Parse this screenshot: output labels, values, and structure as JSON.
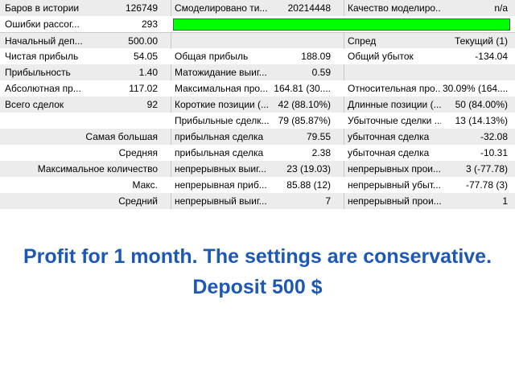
{
  "rows": [
    {
      "l1": "Баров в истории",
      "v1": "126749",
      "l2": "Смоделировано ти...",
      "v2": "20214448",
      "l3": "Качество моделиро...",
      "v3": "n/a"
    },
    {
      "l1": "Ошибки рассог...",
      "v1": "293",
      "quality_fraction": 1.0,
      "quality_color": "#00ff00"
    },
    {
      "l1": "Начальный деп...",
      "v1": "500.00",
      "l2": "",
      "v2": "",
      "l3": "Спред",
      "v3": "Текущий (1)"
    },
    {
      "l1": "Чистая прибыль",
      "v1": "54.05",
      "l2": "Общая прибыль",
      "v2": "188.09",
      "l3": "Общий убыток",
      "v3": "-134.04"
    },
    {
      "l1": "Прибыльность",
      "v1": "1.40",
      "l2": "Матожидание выиг...",
      "v2": "0.59",
      "l3": "",
      "v3": ""
    },
    {
      "l1": "Абсолютная пр...",
      "v1": "117.02",
      "l2": "Максимальная про...",
      "v2": "164.81 (30....",
      "l3": "Относительная про...",
      "v3": "30.09% (164...."
    },
    {
      "l1": "Всего сделок",
      "v1": "92",
      "l2": "Короткие позиции (...",
      "v2": "42 (88.10%)",
      "l3": "Длинные позиции (...",
      "v3": "50 (84.00%)"
    },
    {
      "l1": "",
      "v1": "",
      "l2": "Прибыльные сделк...",
      "v2": "79 (85.87%)",
      "l3": "Убыточные сделки ...",
      "v3": "13 (14.13%)"
    },
    {
      "wide": "Самая большая",
      "l2": "прибыльная сделка",
      "v2": "79.55",
      "l3": "убыточная сделка",
      "v3": "-32.08"
    },
    {
      "wide": "Средняя",
      "l2": "прибыльная сделка",
      "v2": "2.38",
      "l3": "убыточная сделка",
      "v3": "-10.31"
    },
    {
      "wide": "Максимальное количество",
      "l2": "непрерывных выиг...",
      "v2": "23 (19.03)",
      "l3": "непрерывных прои...",
      "v3": "3 (-77.78)"
    },
    {
      "wide": "Макс.",
      "l2": "непрерывная приб...",
      "v2": "85.88 (12)",
      "l3": "непрерывный убыт...",
      "v3": "-77.78 (3)"
    },
    {
      "wide": "Средний",
      "l2": "непрерывный выиг...",
      "v2": "7",
      "l3": "непрерывный прои...",
      "v3": "1"
    }
  ],
  "caption": {
    "line1": "Profit for 1 month. The settings are conservative.",
    "line2": "Deposit 500 $",
    "color": "#1e58b5"
  }
}
